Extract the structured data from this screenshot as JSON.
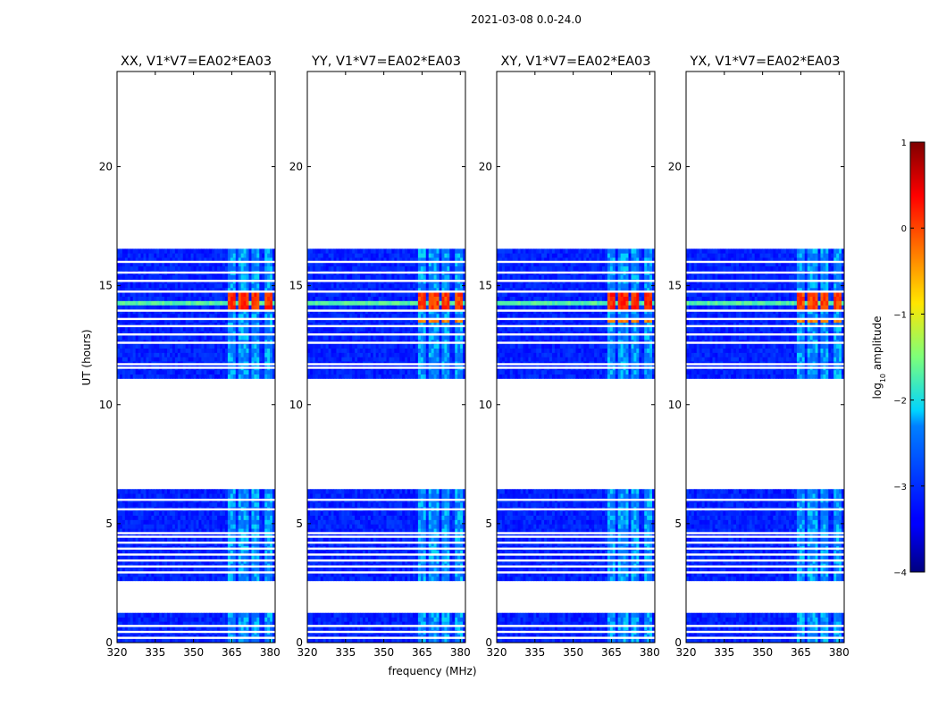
{
  "chart_data": {
    "type": "heatmap",
    "suptitle": "2021-03-08 0.0-24.0",
    "xlabel": "frequency (MHz)",
    "ylabel": "UT (hours)",
    "xlim": [
      320,
      382
    ],
    "ylim": [
      0,
      24
    ],
    "xticks": [
      320,
      335,
      350,
      365,
      380
    ],
    "yticks": [
      0,
      5,
      10,
      15,
      20
    ],
    "colorbar": {
      "label": "log10 amplitude",
      "label_prefix": "log",
      "label_sub": "10",
      "label_suffix": " amplitude",
      "range": [
        -4,
        1
      ],
      "ticks": [
        1,
        0,
        -1,
        -2,
        -3,
        -4
      ],
      "tick_labels": [
        "1",
        "0",
        "−1",
        "−2",
        "−3",
        "−4"
      ],
      "colormap": "jet"
    },
    "observation_blocks_hours": [
      [
        0.0,
        1.25
      ],
      [
        2.6,
        6.45
      ],
      [
        11.1,
        16.55
      ]
    ],
    "gap_rows_hours": [
      0.2,
      0.45,
      0.7,
      2.95,
      3.2,
      3.45,
      3.7,
      3.95,
      4.2,
      4.45,
      4.6,
      5.6,
      6.0,
      11.55,
      11.7,
      12.6,
      12.95,
      13.3,
      13.6,
      13.95,
      14.75,
      15.2,
      15.55,
      16.0
    ],
    "rfi_band_centers_mhz": [
      364.2,
      369.2,
      374.0,
      379.0
    ],
    "rfi_band_width_mhz": 3.6,
    "panels": [
      {
        "title": "XX, V1*V7=EA02*EA03",
        "baseline_log_amplitude": -3.1,
        "band_log_amplitude": -2.3,
        "flare_log_amplitude": 0.1,
        "flare_hours": [
          14.0,
          14.7
        ],
        "band_flare_hours": [],
        "broadband_row_hours": [
          14.05,
          14.3
        ]
      },
      {
        "title": "YY, V1*V7=EA02*EA03",
        "baseline_log_amplitude": -3.1,
        "band_log_amplitude": -2.3,
        "flare_log_amplitude": 0.05,
        "flare_hours": [
          14.0,
          14.7
        ],
        "band_flare_hours": [
          13.35,
          13.6
        ],
        "broadband_row_hours": [
          14.05,
          14.3
        ]
      },
      {
        "title": "XY, V1*V7=EA02*EA03",
        "baseline_log_amplitude": -3.1,
        "band_log_amplitude": -2.3,
        "flare_log_amplitude": 0.15,
        "flare_hours": [
          14.0,
          14.7
        ],
        "band_flare_hours": [
          13.35,
          13.6
        ],
        "broadband_row_hours": [
          14.05,
          14.3
        ]
      },
      {
        "title": "YX, V1*V7=EA02*EA03",
        "baseline_log_amplitude": -3.1,
        "band_log_amplitude": -2.3,
        "flare_log_amplitude": 0.0,
        "flare_hours": [
          14.0,
          14.7
        ],
        "band_flare_hours": [
          13.35,
          13.6
        ],
        "broadband_row_hours": [
          14.05,
          14.3
        ]
      }
    ]
  }
}
